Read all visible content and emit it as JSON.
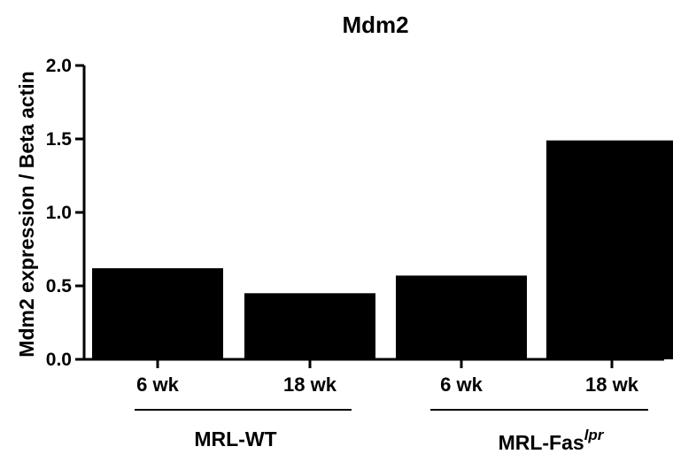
{
  "chart_data": {
    "type": "bar",
    "title": "Mdm2",
    "ylabel": "Mdm2 expression / Beta actin",
    "xlabel": "",
    "ylim": [
      0,
      2.0
    ],
    "yticks": [
      "0.0",
      "0.5",
      "1.0",
      "1.5",
      "2.0"
    ],
    "categories": [
      "6 wk",
      "18 wk",
      "6 wk",
      "18 wk"
    ],
    "values": [
      0.62,
      0.45,
      0.57,
      1.49
    ],
    "groups": [
      {
        "label": "MRL-WT",
        "superscript": "",
        "categories": [
          0,
          1
        ]
      },
      {
        "label": "MRL-Fas",
        "superscript": "lpr",
        "categories": [
          2,
          3
        ]
      }
    ],
    "bar_color": "#000000",
    "grid": false,
    "legend": "none"
  }
}
